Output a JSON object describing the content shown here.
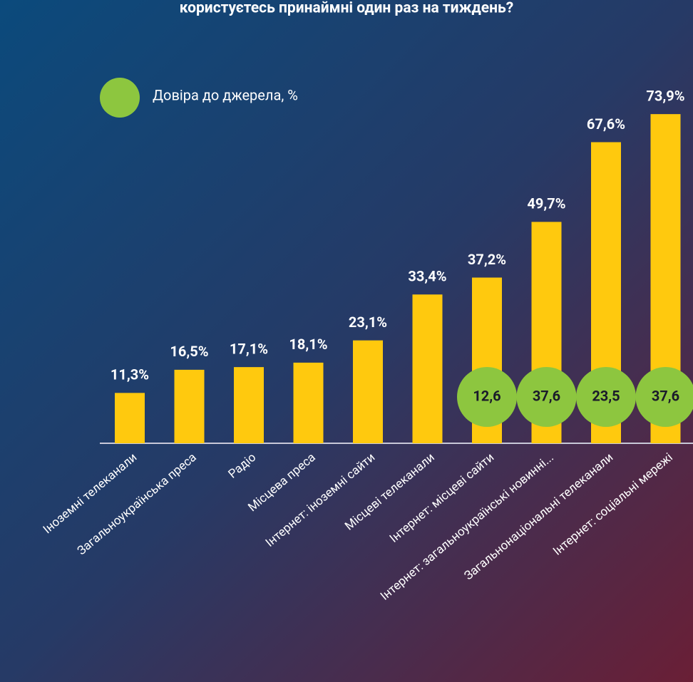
{
  "chart_data": {
    "type": "bar",
    "title": "користуєтесь принаймні один раз на тиждень?",
    "categories": [
      "Іноземні телеканали",
      "Загальноукраїнська преса",
      "Радіо",
      "Місцева преса",
      "Інтернет: іноземні сайти",
      "Місцеві телеканали",
      "Інтернет: місцеві сайти",
      "Інтернет: загальноукраїнські новинні...",
      "Загальнонаціональні телеканали",
      "Інтернет: соціальні мережі"
    ],
    "values": [
      11.3,
      16.5,
      17.1,
      18.1,
      23.1,
      33.4,
      37.2,
      49.7,
      67.6,
      73.9
    ],
    "value_labels": [
      "11,3%",
      "16,5%",
      "17,1%",
      "18,1%",
      "23,1%",
      "33,4%",
      "37,2%",
      "49,7%",
      "67,6%",
      "73,9%"
    ],
    "color": "#ffc90e",
    "trust": {
      "name": "Довіра до джерела, %",
      "color": "#8dc63f",
      "values": [
        null,
        null,
        null,
        null,
        null,
        null,
        12.6,
        37.6,
        23.5,
        37.6
      ],
      "value_labels": [
        null,
        null,
        null,
        null,
        null,
        null,
        "12,6",
        "37,6",
        "23,5",
        "37,6"
      ]
    }
  }
}
